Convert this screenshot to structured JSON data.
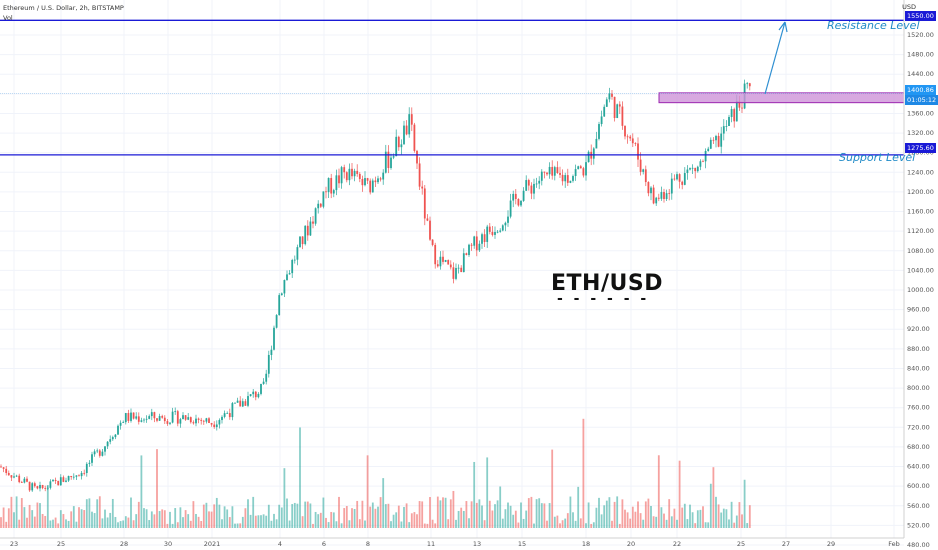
{
  "header": {
    "symbol": "Ethereum / U.S. Dollar, 2h, BITSTAMP",
    "volume_label": "Vol",
    "currency": "USD"
  },
  "levels": {
    "resistance": {
      "label": "Resistance Level",
      "price": 1550.0,
      "price_label": "1550.00",
      "color": "#1a1ad6"
    },
    "support": {
      "label": "Support Level",
      "price": 1275.6,
      "price_label": "1275.60",
      "color": "#1a1ad6"
    }
  },
  "tags": {
    "last_price": "1400.86",
    "countdown": "01:05:12"
  },
  "watermark": {
    "title": "ETH/USD",
    "dashes": "- - - - - -"
  },
  "colors": {
    "up": "#26a69a",
    "down": "#ef5350",
    "level_line": "#1a1ad6",
    "label_text": "#1f8ac7",
    "zone_fill": "#ce93d8",
    "zone_border": "#9c27b0",
    "arrow": "#2f8fd1",
    "last_price_tag": "#2196f3",
    "countdown_tag": "#1e88e5"
  },
  "chart_data": {
    "type": "candlestick",
    "title": "Ethereum / U.S. Dollar, 2h, BITSTAMP",
    "ylim": [
      460,
      1560
    ],
    "y_ticks": [
      "480.00",
      "520.00",
      "560.00",
      "600.00",
      "640.00",
      "680.00",
      "720.00",
      "760.00",
      "800.00",
      "840.00",
      "880.00",
      "920.00",
      "960.00",
      "1000.00",
      "1040.00",
      "1080.00",
      "1120.00",
      "1160.00",
      "1200.00",
      "1240.00",
      "1280.00",
      "1320.00",
      "1360.00",
      "1400.00",
      "1440.00",
      "1480.00",
      "1520.00"
    ],
    "x_tick_labels": [
      "23",
      "25",
      "28",
      "30",
      "2021",
      "4",
      "6",
      "8",
      "11",
      "13",
      "15",
      "18",
      "20",
      "22",
      "25",
      "27",
      "29",
      "Feb"
    ],
    "approx_close_path": [
      {
        "date": "Dec 22",
        "price": 640
      },
      {
        "date": "Dec 24",
        "price": 590
      },
      {
        "date": "Dec 26",
        "price": 630
      },
      {
        "date": "Dec 27",
        "price": 680
      },
      {
        "date": "Dec 28",
        "price": 740
      },
      {
        "date": "Dec 31",
        "price": 740
      },
      {
        "date": "Jan 1",
        "price": 730
      },
      {
        "date": "Jan 3",
        "price": 800
      },
      {
        "date": "Jan 4",
        "price": 1000
      },
      {
        "date": "Jan 5",
        "price": 1100
      },
      {
        "date": "Jan 6",
        "price": 1200
      },
      {
        "date": "Jan 7",
        "price": 1240
      },
      {
        "date": "Jan 8",
        "price": 1210
      },
      {
        "date": "Jan 9",
        "price": 1270
      },
      {
        "date": "Jan 10",
        "price": 1340
      },
      {
        "date": "Jan 11",
        "price": 1080
      },
      {
        "date": "Jan 12",
        "price": 1030
      },
      {
        "date": "Jan 13",
        "price": 1100
      },
      {
        "date": "Jan 14",
        "price": 1140
      },
      {
        "date": "Jan 15",
        "price": 1200
      },
      {
        "date": "Jan 16",
        "price": 1230
      },
      {
        "date": "Jan 17",
        "price": 1230
      },
      {
        "date": "Jan 18",
        "price": 1250
      },
      {
        "date": "Jan 19",
        "price": 1400
      },
      {
        "date": "Jan 20",
        "price": 1310
      },
      {
        "date": "Jan 21",
        "price": 1180
      },
      {
        "date": "Jan 22",
        "price": 1230
      },
      {
        "date": "Jan 23",
        "price": 1250
      },
      {
        "date": "Jan 24",
        "price": 1310
      },
      {
        "date": "Jan 25",
        "price": 1410
      }
    ],
    "zone": {
      "from_price": 1382,
      "to_price": 1402
    },
    "volume_note": "volume bars along the bottom, colored by candle direction"
  }
}
